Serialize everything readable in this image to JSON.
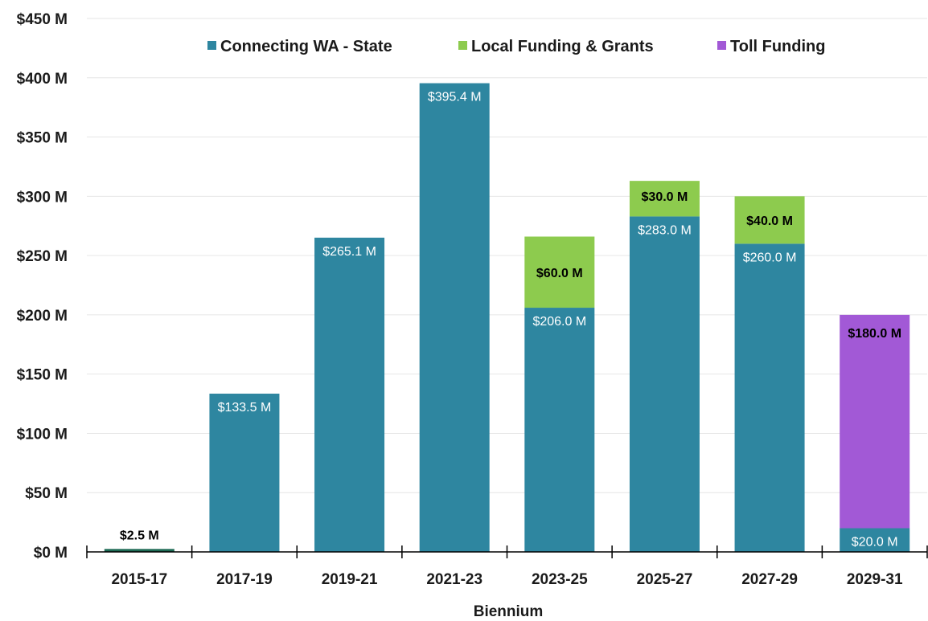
{
  "chart_data": {
    "type": "bar",
    "stacked": true,
    "title": "",
    "xlabel": "Biennium",
    "ylabel": "",
    "ylim": [
      0,
      450
    ],
    "y_ticks": [
      "$0 M",
      "$50 M",
      "$100 M",
      "$150 M",
      "$200 M",
      "$250 M",
      "$300 M",
      "$350 M",
      "$400 M",
      "$450 M"
    ],
    "y_tick_values": [
      0,
      50,
      100,
      150,
      200,
      250,
      300,
      350,
      400,
      450
    ],
    "grid": true,
    "legend_position": "top",
    "categories": [
      "2015-17",
      "2017-19",
      "2019-21",
      "2021-23",
      "2023-25",
      "2025-27",
      "2027-29",
      "2029-31"
    ],
    "series": [
      {
        "name": "Connecting WA - State",
        "color": "#2E86A0",
        "values": [
          2.5,
          133.5,
          265.1,
          395.4,
          206.0,
          283.0,
          260.0,
          20.0
        ],
        "labels": [
          "$2.5 M",
          "$133.5 M",
          "$265.1 M",
          "$395.4 M",
          "$206.0 M",
          "$283.0 M",
          "$260.0 M",
          "$20.0 M"
        ]
      },
      {
        "name": "Local Funding & Grants",
        "color": "#8DCB4E",
        "values": [
          0,
          0,
          0,
          0,
          60.0,
          30.0,
          40.0,
          0
        ],
        "labels": [
          "",
          "",
          "",
          "",
          "$60.0 M",
          "$30.0 M",
          "$40.0 M",
          ""
        ]
      },
      {
        "name": "Toll Funding",
        "color": "#A259D6",
        "values": [
          0,
          0,
          0,
          0,
          0,
          0,
          0,
          180.0
        ],
        "labels": [
          "",
          "",
          "",
          "",
          "",
          "",
          "",
          "$180.0 M"
        ]
      }
    ],
    "first_bar_color": "#1E6B55"
  }
}
